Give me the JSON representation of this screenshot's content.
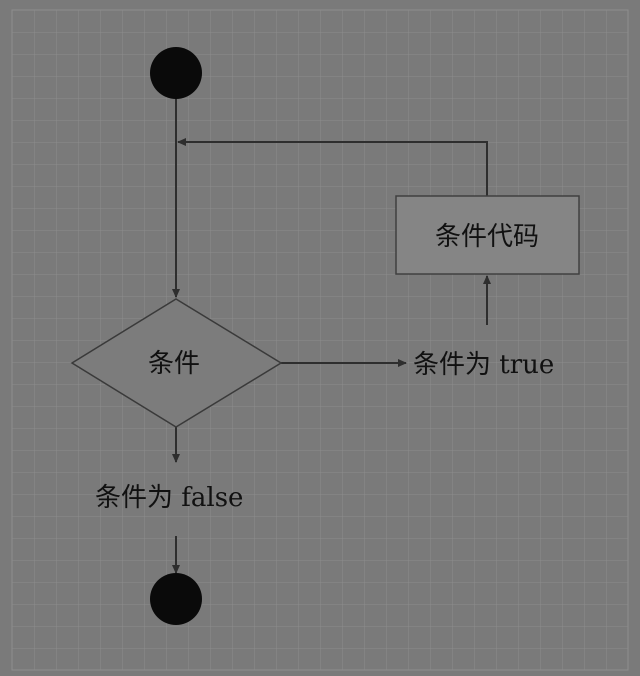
{
  "diagram": {
    "type": "flowchart",
    "nodes": {
      "start": {
        "kind": "terminal-dot"
      },
      "condition": {
        "kind": "decision",
        "label": "条件"
      },
      "code_block": {
        "kind": "process",
        "label": "条件代码"
      },
      "true_label": {
        "kind": "label",
        "label": "条件为 true"
      },
      "false_label": {
        "kind": "label",
        "label": "条件为 false"
      },
      "end": {
        "kind": "terminal-dot"
      }
    },
    "edges": [
      {
        "from": "start",
        "to": "condition"
      },
      {
        "from": "condition",
        "to": "true_label"
      },
      {
        "from": "true_label",
        "to": "code_block"
      },
      {
        "from": "code_block",
        "to": "start-line",
        "note": "loop back"
      },
      {
        "from": "condition",
        "to": "false_label"
      },
      {
        "from": "false_label",
        "to": "end"
      }
    ]
  },
  "colors": {
    "background": "#7a7a7a",
    "grid_minor": "#8a8a8a",
    "grid_major": "#909090",
    "line": "#2e2e2e",
    "terminal": "#0a0a0a",
    "process_fill": "#858585",
    "process_stroke": "#404040",
    "decision_fill": "#7c7c7c",
    "decision_stroke": "#3a3a3a",
    "text": "#111111"
  }
}
